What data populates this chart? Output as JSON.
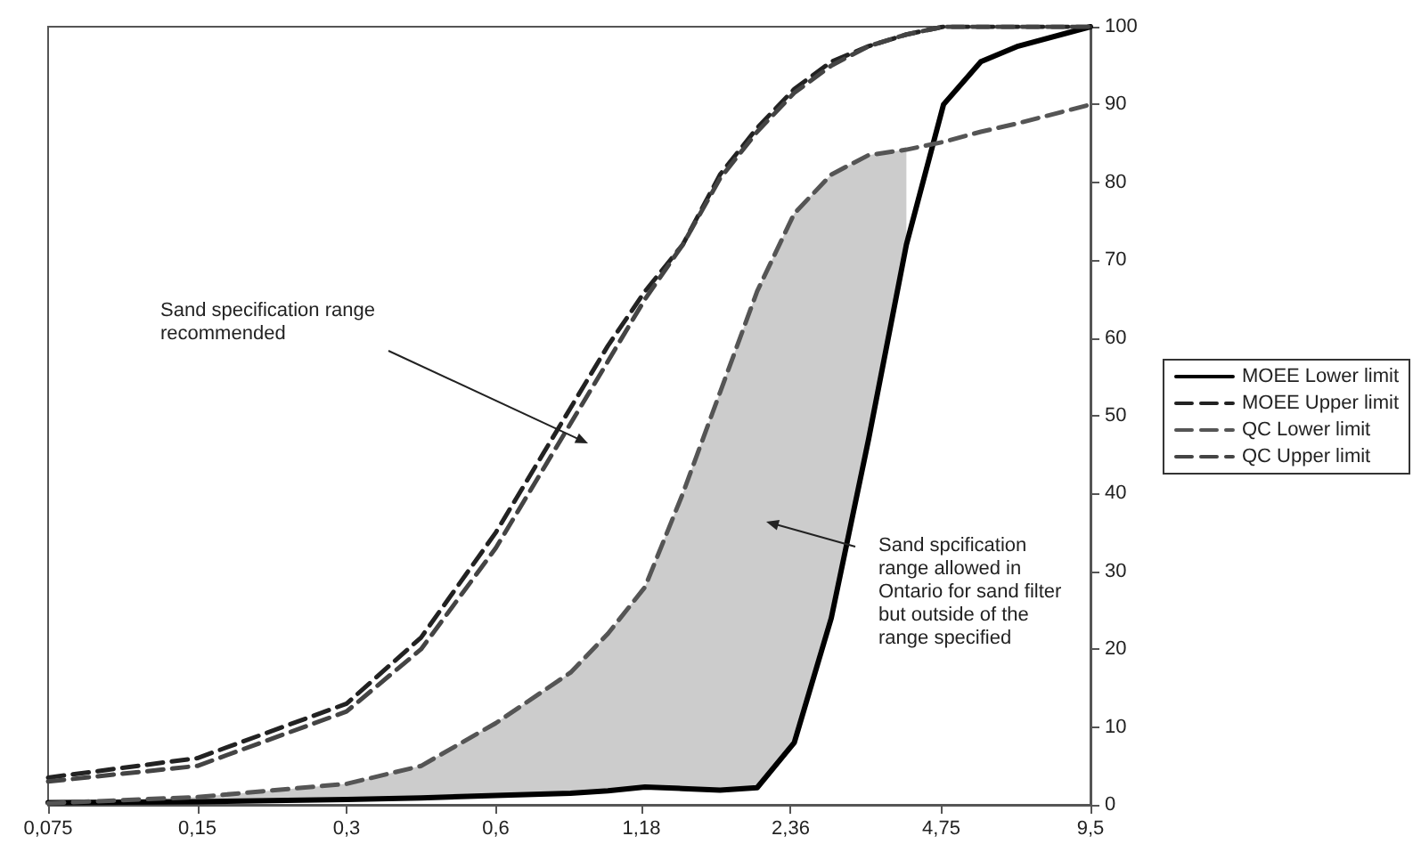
{
  "chart_data": {
    "type": "line",
    "x": [
      0.075,
      0.15,
      0.3,
      0.424,
      0.6,
      0.849,
      1.01,
      1.2,
      1.43,
      1.7,
      2.02,
      2.4,
      2.85,
      3.39,
      4.04,
      4.8,
      5.71,
      6.79,
      9.5
    ],
    "series": [
      {
        "name": "MOEE Lower limit",
        "color": "#000000",
        "line_style": "solid",
        "values": [
          0.3,
          0.4,
          0.7,
          0.9,
          1.2,
          1.5,
          1.8,
          2.3,
          2.1,
          1.9,
          2.2,
          8,
          24,
          47,
          72,
          90,
          95.5,
          97.5,
          100
        ]
      },
      {
        "name": "MOEE Upper limit",
        "color": "#222222",
        "line_style": "dashed",
        "values": [
          3.5,
          6,
          13,
          21.5,
          35,
          51,
          59,
          66,
          72,
          81,
          87,
          92,
          95.5,
          97.5,
          99,
          100,
          100,
          100,
          100
        ]
      },
      {
        "name": "QC Lower limit",
        "color": "#555555",
        "line_style": "dashed",
        "values": [
          0.2,
          1,
          2.7,
          5,
          10.5,
          17,
          22,
          28,
          40,
          53,
          66,
          76,
          81,
          83.5,
          84.2,
          85.2,
          86.5,
          87.6,
          90
        ],
        "lower": [
          0.2,
          0.4,
          0.7,
          0.9,
          1.2,
          1.5,
          1.8,
          2.3,
          2.1,
          1.9,
          2.2,
          8,
          24,
          47,
          72,
          null,
          null,
          null,
          null
        ],
        "upper": [
          0.2,
          1,
          2.7,
          5,
          10.5,
          17,
          22,
          28,
          40,
          53,
          66,
          76,
          81,
          83.5,
          84.2,
          null,
          null,
          null,
          null
        ]
      },
      {
        "name": "QC Upper limit",
        "color": "#444444",
        "line_style": "dashed",
        "values": [
          3,
          5,
          12,
          20,
          33,
          49,
          57,
          65,
          72,
          80.5,
          86.5,
          91.5,
          95,
          97.5,
          99,
          100,
          100,
          100,
          100
        ]
      }
    ],
    "log": "x",
    "xlim": [
      0.075,
      9.5
    ],
    "xticks": [
      {
        "value": 0.075,
        "label": "0,075"
      },
      {
        "value": 0.15,
        "label": "0,15"
      },
      {
        "value": 0.3,
        "label": "0,3"
      },
      {
        "value": 0.6,
        "label": "0,6"
      },
      {
        "value": 1.18,
        "label": "1,18"
      },
      {
        "value": 2.36,
        "label": "2,36"
      },
      {
        "value": 4.75,
        "label": "4,75"
      },
      {
        "value": 9.5,
        "label": "9,5"
      }
    ],
    "ylim": [
      0,
      100
    ],
    "yticks": [
      0,
      10,
      20,
      30,
      40,
      50,
      60,
      70,
      80,
      90,
      100
    ],
    "grid": false,
    "legend": "right",
    "marker": "none",
    "annotations": [
      "Sand specification range recommended",
      "Sand spcification range allowed in Ontario for sand filter  but outside of the range specified"
    ]
  }
}
